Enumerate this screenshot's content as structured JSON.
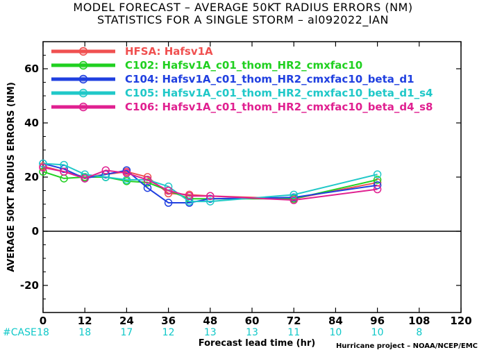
{
  "title_line1": "MODEL FORECAST – AVERAGE 50KT RADIUS ERRORS (NM)",
  "title_line2": "STATISTICS FOR A SINGLE STORM – al092022_IAN",
  "credit": "Hurricane project – NOAA/NCEP/EMC",
  "case_label": "#CASE",
  "case_counts": [
    {
      "x": 0,
      "n": "18"
    },
    {
      "x": 12,
      "n": "18"
    },
    {
      "x": 24,
      "n": "17"
    },
    {
      "x": 36,
      "n": "12"
    },
    {
      "x": 48,
      "n": "13"
    },
    {
      "x": 60,
      "n": "13"
    },
    {
      "x": 72,
      "n": "11"
    },
    {
      "x": 84,
      "n": "10"
    },
    {
      "x": 96,
      "n": "10"
    },
    {
      "x": 108,
      "n": "8"
    }
  ],
  "chart_data": {
    "type": "line",
    "xlabel": "Forecast lead time (hr)",
    "ylabel": "AVERAGE 50KT RADIUS ERRORS (NM)",
    "xlim": [
      0,
      120
    ],
    "ylim": [
      -30,
      70
    ],
    "xticks": [
      0,
      12,
      24,
      36,
      48,
      60,
      72,
      84,
      96,
      108,
      120
    ],
    "yticks": [
      -20,
      0,
      20,
      40,
      60
    ],
    "legend_position": "top-left",
    "series": [
      {
        "name": "HFSA: Hafsv1A",
        "color": "#f05050",
        "x": [
          0,
          6,
          12,
          18,
          24,
          30,
          36,
          42,
          48,
          72,
          96
        ],
        "y": [
          24,
          22,
          20,
          21,
          22,
          20,
          14,
          13.5,
          13,
          12,
          18
        ]
      },
      {
        "name": "C102: Hafsv1A_c01_thom_HR2_cmxfac10",
        "color": "#20d020",
        "x": [
          0,
          6,
          12,
          18,
          24,
          30,
          36,
          42,
          48,
          72,
          96
        ],
        "y": [
          22,
          19.5,
          20,
          20,
          18.5,
          18,
          15,
          12,
          12,
          12,
          19
        ]
      },
      {
        "name": "C104: Hafsv1A_c01_thom_HR2_cmxfac10_beta_d1",
        "color": "#2040e0",
        "x": [
          0,
          6,
          12,
          18,
          24,
          30,
          36,
          42,
          48,
          72,
          96
        ],
        "y": [
          25,
          23,
          19.5,
          21,
          22.5,
          16,
          10.5,
          10.5,
          12,
          12.5,
          17
        ]
      },
      {
        "name": "C105: Hafsv1A_c01_thom_HR2_cmxfac10_beta_d1_s4",
        "color": "#20c8c8",
        "x": [
          0,
          6,
          12,
          18,
          24,
          30,
          36,
          42,
          48,
          72,
          96
        ],
        "y": [
          25,
          24.5,
          21,
          20,
          19,
          19,
          16.5,
          11,
          11,
          13.5,
          21
        ]
      },
      {
        "name": "C106: Hafsv1A_c01_thom_HR2_cmxfac10_beta_d4_s8",
        "color": "#e02090",
        "x": [
          0,
          6,
          12,
          18,
          24,
          30,
          36,
          42,
          48,
          72,
          96
        ],
        "y": [
          23.5,
          22,
          19.5,
          22.5,
          21.5,
          19,
          15,
          13,
          13,
          11.5,
          15.5
        ]
      }
    ]
  }
}
